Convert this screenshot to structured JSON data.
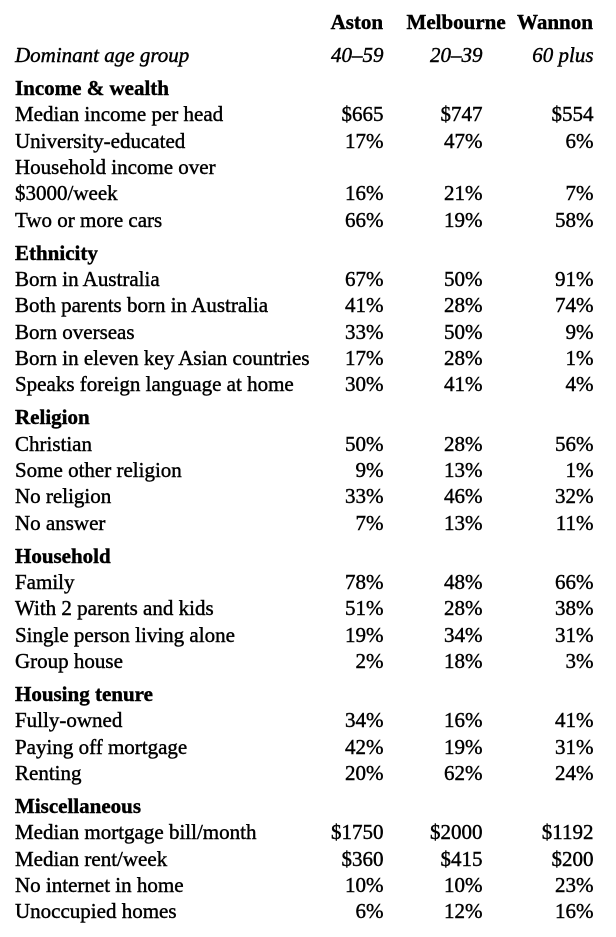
{
  "page": {
    "background": "#ffffff",
    "text_color": "#000000"
  },
  "table": {
    "column_headers": [
      "Aston",
      "Melbourne",
      "Wannon"
    ],
    "age_row": {
      "label": "Dominant age group",
      "values": [
        "40–59",
        "20–39",
        "60 plus"
      ]
    },
    "sections": [
      {
        "title": "Income & wealth",
        "rows": [
          {
            "label": "Median income per head",
            "values": [
              "$665",
              "$747",
              "$554"
            ]
          },
          {
            "label": "University-educated",
            "values": [
              "17%",
              "47%",
              "6%"
            ]
          },
          {
            "label": "Household income over\n$3000/week",
            "values": [
              "16%",
              "21%",
              "7%"
            ]
          },
          {
            "label": "Two or more cars",
            "values": [
              "66%",
              "19%",
              "58%"
            ]
          }
        ]
      },
      {
        "title": "Ethnicity",
        "rows": [
          {
            "label": "Born in Australia",
            "values": [
              "67%",
              "50%",
              "91%"
            ]
          },
          {
            "label": "Both parents born in Australia",
            "values": [
              "41%",
              "28%",
              "74%"
            ]
          },
          {
            "label": "Born overseas",
            "values": [
              "33%",
              "50%",
              "9%"
            ]
          },
          {
            "label": "Born in eleven key Asian countries",
            "values": [
              "17%",
              "28%",
              "1%"
            ]
          },
          {
            "label": "Speaks foreign language at home",
            "values": [
              "30%",
              "41%",
              "4%"
            ]
          }
        ]
      },
      {
        "title": "Religion",
        "rows": [
          {
            "label": "Christian",
            "values": [
              "50%",
              "28%",
              "56%"
            ]
          },
          {
            "label": "Some other religion",
            "values": [
              "9%",
              "13%",
              "1%"
            ]
          },
          {
            "label": "No religion",
            "values": [
              "33%",
              "46%",
              "32%"
            ]
          },
          {
            "label": "No answer",
            "values": [
              "7%",
              "13%",
              "11%"
            ]
          }
        ]
      },
      {
        "title": "Household",
        "rows": [
          {
            "label": "Family",
            "values": [
              "78%",
              "48%",
              "66%"
            ]
          },
          {
            "label": "With 2 parents and kids",
            "values": [
              "51%",
              "28%",
              "38%"
            ]
          },
          {
            "label": "Single person living alone",
            "values": [
              "19%",
              "34%",
              "31%"
            ]
          },
          {
            "label": "Group house",
            "values": [
              "2%",
              "18%",
              "3%"
            ]
          }
        ]
      },
      {
        "title": "Housing tenure",
        "rows": [
          {
            "label": "Fully-owned",
            "values": [
              "34%",
              "16%",
              "41%"
            ]
          },
          {
            "label": "Paying off mortgage",
            "values": [
              "42%",
              "19%",
              "31%"
            ]
          },
          {
            "label": "Renting",
            "values": [
              "20%",
              "62%",
              "24%"
            ]
          }
        ]
      },
      {
        "title": "Miscellaneous",
        "rows": [
          {
            "label": "Median mortgage bill/month",
            "values": [
              "$1750",
              "$2000",
              "$1192"
            ]
          },
          {
            "label": "Median rent/week",
            "values": [
              "$360",
              "$415",
              "$200"
            ]
          },
          {
            "label": "No internet in home",
            "values": [
              "10%",
              "10%",
              "23%"
            ]
          },
          {
            "label": "Unoccupied homes",
            "values": [
              "6%",
              "12%",
              "16%"
            ]
          }
        ]
      }
    ]
  }
}
